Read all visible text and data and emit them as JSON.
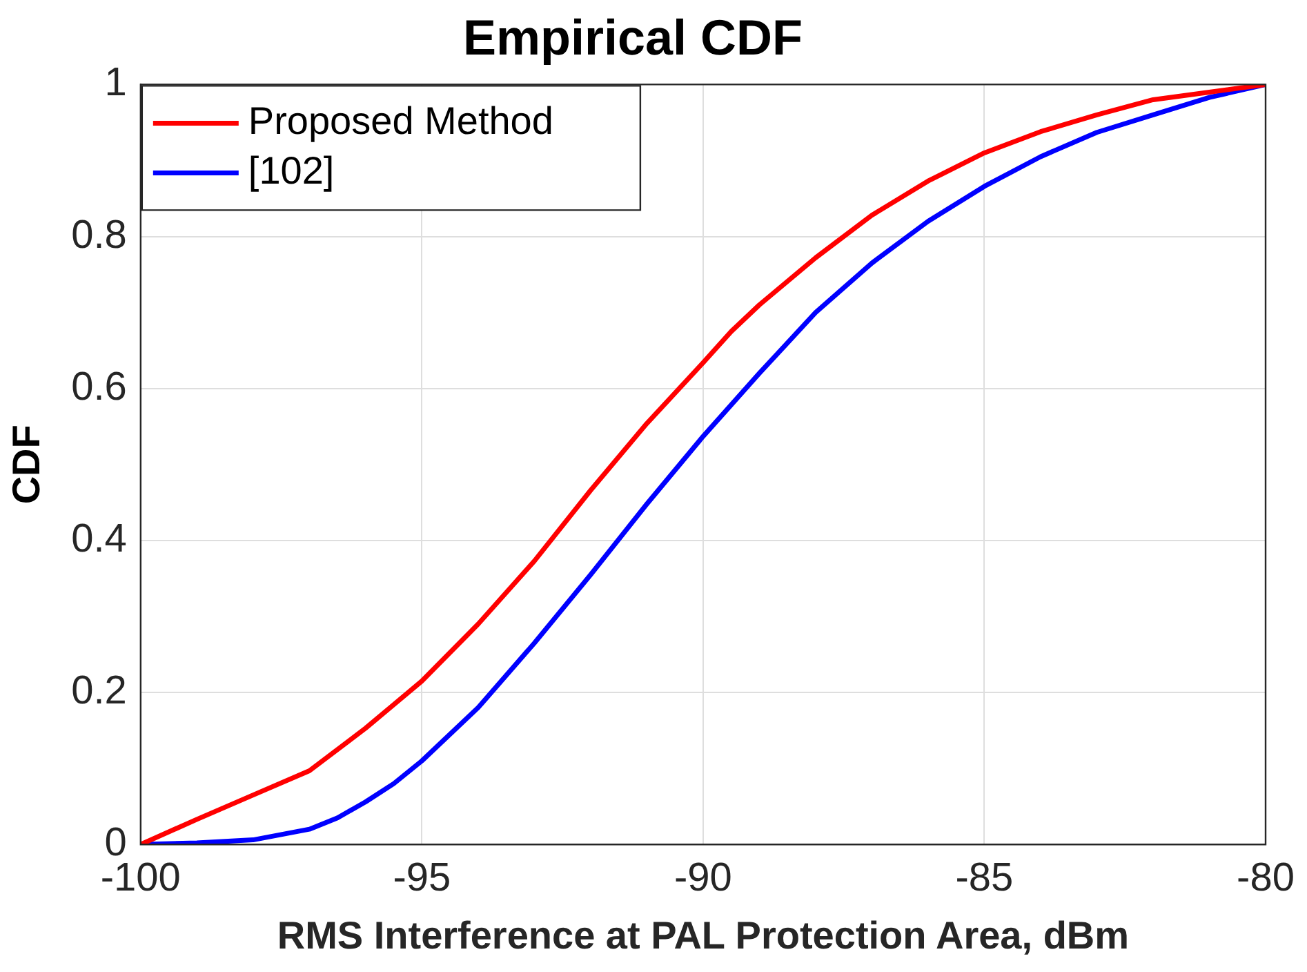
{
  "chart_data": {
    "type": "line",
    "title": "Empirical CDF",
    "xlabel": "RMS Interference at PAL Protection Area, dBm",
    "ylabel": "CDF",
    "xlim": [
      -100,
      -80
    ],
    "xticks": [
      -100,
      -95,
      -90,
      -85,
      -80
    ],
    "ylim": [
      0,
      1
    ],
    "yticks": [
      0,
      0.2,
      0.4,
      0.6,
      0.8,
      1
    ],
    "grid": true,
    "legend": "top left",
    "marker": "none",
    "line_style": "solid",
    "series": [
      {
        "name": "Proposed Method",
        "color": "#ff0000",
        "x": [
          -100,
          -99,
          -98,
          -97,
          -96,
          -95,
          -94,
          -93,
          -92,
          -91,
          -90,
          -89.5,
          -89,
          -88,
          -87,
          -86,
          -85,
          -84,
          -83,
          -82,
          -81,
          -80
        ],
        "values": [
          0,
          0.033,
          0.065,
          0.097,
          0.153,
          0.215,
          0.29,
          0.373,
          0.466,
          0.554,
          0.634,
          0.675,
          0.71,
          0.772,
          0.828,
          0.873,
          0.91,
          0.938,
          0.96,
          0.98,
          0.99,
          1
        ]
      },
      {
        "name": "[102]",
        "color": "#0000ff",
        "x": [
          -100,
          -99,
          -98,
          -97,
          -96.5,
          -96,
          -95.5,
          -95,
          -94,
          -93,
          -92,
          -91,
          -90,
          -89,
          -88,
          -87,
          -86,
          -85,
          -84,
          -83,
          -82,
          -81,
          -80
        ],
        "values": [
          0,
          0.002,
          0.006,
          0.02,
          0.035,
          0.056,
          0.08,
          0.11,
          0.18,
          0.265,
          0.355,
          0.448,
          0.537,
          0.62,
          0.7,
          0.765,
          0.82,
          0.866,
          0.905,
          0.937,
          0.96,
          0.983,
          1
        ]
      }
    ]
  }
}
